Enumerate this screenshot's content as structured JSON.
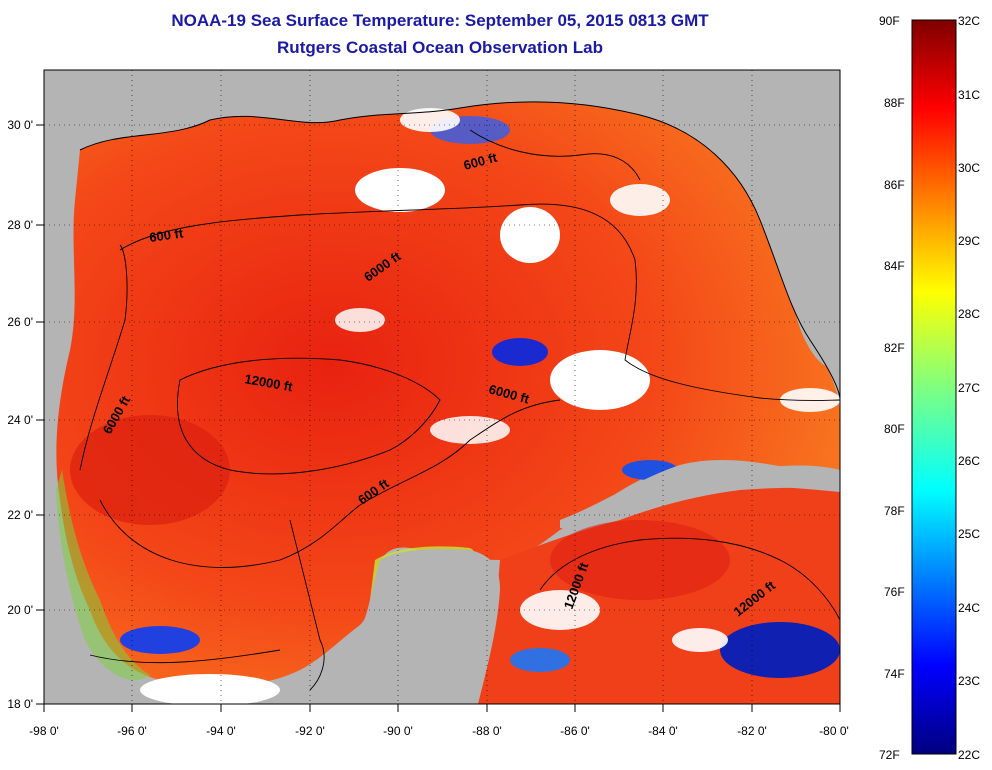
{
  "header": {
    "title": "NOAA-19 Sea Surface Temperature:  September 05, 2015 0813 GMT",
    "subtitle": "Rutgers Coastal Ocean Observation Lab"
  },
  "map": {
    "lon_ticks": [
      "-98 0'",
      "-96 0'",
      "-94 0'",
      "-92 0'",
      "-90 0'",
      "-88 0'",
      "-86 0'",
      "-84 0'",
      "-82 0'",
      "-80 0'"
    ],
    "lat_ticks": [
      "30 0'",
      "28 0'",
      "26 0'",
      "24 0'",
      "22 0'",
      "20 0'",
      "18 0'"
    ],
    "contour_labels": [
      "600 ft",
      "600 ft",
      "6000 ft",
      "12000 ft",
      "6000 ft",
      "6000 ft",
      "600 ft",
      "12000 ft",
      "12000 ft"
    ],
    "colors": {
      "land": "#b4b4b4",
      "cloud": "#ffffff",
      "warm_water": "#f03010"
    }
  },
  "colorbar": {
    "fahrenheit": [
      "90F",
      "88F",
      "86F",
      "84F",
      "82F",
      "80F",
      "78F",
      "76F",
      "74F",
      "72F"
    ],
    "celsius": [
      "32C",
      "31C",
      "30C",
      "29C",
      "28C",
      "27C",
      "26C",
      "25C",
      "24C",
      "23C",
      "22C"
    ]
  }
}
